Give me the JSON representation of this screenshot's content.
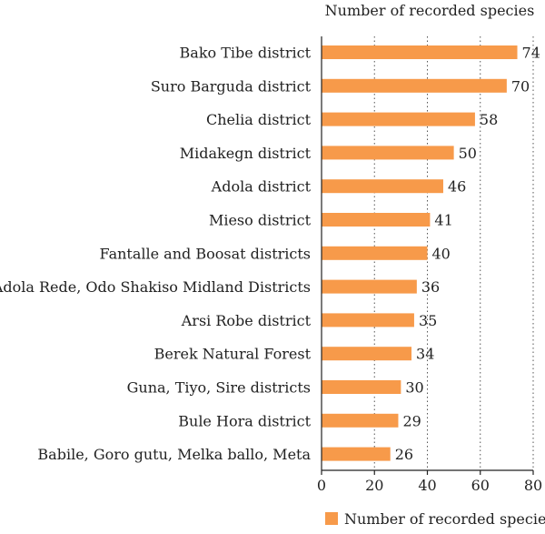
{
  "chart_data": {
    "type": "bar",
    "orientation": "horizontal",
    "title": "Number of recorded species",
    "xlabel": "",
    "ylabel": "",
    "xlim": [
      0,
      80
    ],
    "xticks": [
      0,
      20,
      40,
      60,
      80
    ],
    "grid": "vertical-dotted",
    "legend_position": "bottom",
    "bar_color": "#F79A4A",
    "categories": [
      "Bako Tibe district",
      "Suro Barguda district",
      "Chelia district",
      "Midakegn district",
      "Adola district",
      "Mieso district",
      "Fantalle and Boosat districts",
      "Adola Rede, Odo Shakiso Midland Districts",
      "Arsi Robe district",
      "Berek Natural Forest",
      "Guna, Tiyo, Sire districts",
      "Bule Hora district",
      "Babile, Goro gutu, Melka ballo, Meta"
    ],
    "series": [
      {
        "name": "Number of recorded species",
        "values": [
          74,
          70,
          58,
          50,
          46,
          41,
          40,
          36,
          35,
          34,
          30,
          29,
          26
        ]
      }
    ]
  }
}
